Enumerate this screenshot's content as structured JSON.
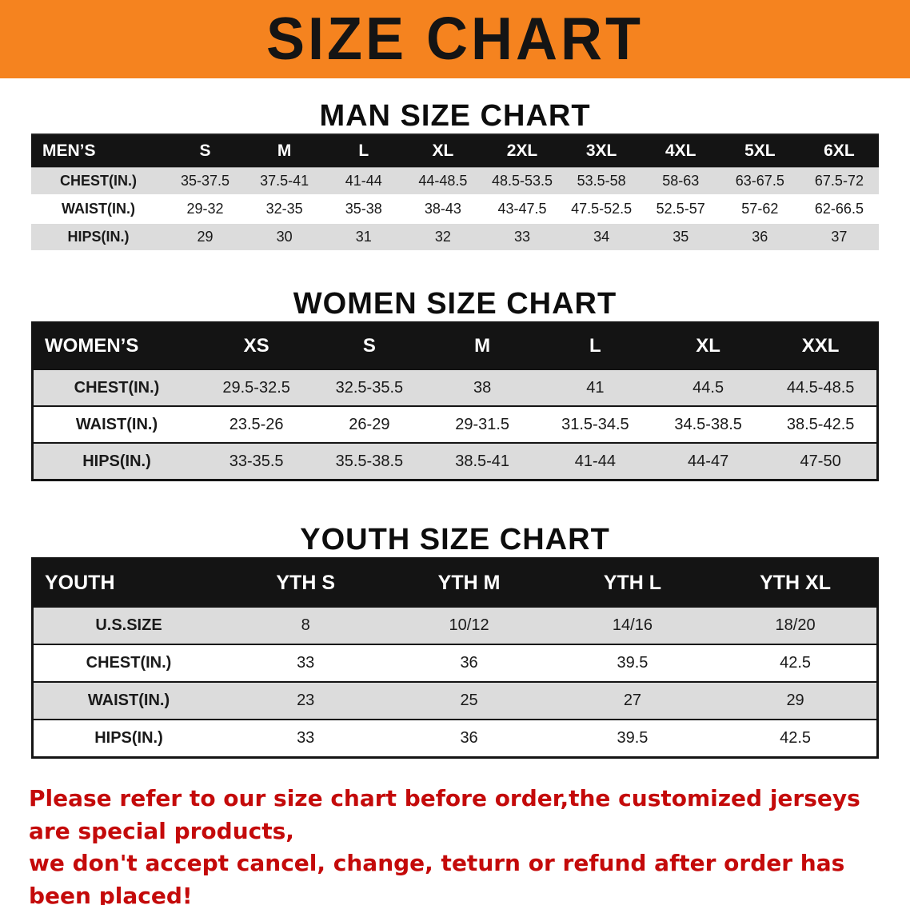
{
  "banner": {
    "title": "SIZE CHART",
    "background": "#f5831f",
    "text_color": "#141414"
  },
  "sections": {
    "man_title": "MAN SIZE CHART",
    "women_title": "WOMEN SIZE CHART",
    "youth_title": "YOUTH SIZE CHART"
  },
  "tables": {
    "men": {
      "header": [
        "MEN’S",
        "S",
        "M",
        "L",
        "XL",
        "2XL",
        "3XL",
        "4XL",
        "5XL",
        "6XL"
      ],
      "rows": [
        [
          "CHEST(IN.)",
          "35-37.5",
          "37.5-41",
          "41-44",
          "44-48.5",
          "48.5-53.5",
          "53.5-58",
          "58-63",
          "63-67.5",
          "67.5-72"
        ],
        [
          "WAIST(IN.)",
          "29-32",
          "32-35",
          "35-38",
          "38-43",
          "43-47.5",
          "47.5-52.5",
          "52.5-57",
          "57-62",
          "62-66.5"
        ],
        [
          "HIPS(IN.)",
          "29",
          "30",
          "31",
          "32",
          "33",
          "34",
          "35",
          "36",
          "37"
        ]
      ]
    },
    "women": {
      "header": [
        "WOMEN’S",
        "XS",
        "S",
        "M",
        "L",
        "XL",
        "XXL"
      ],
      "rows": [
        [
          "CHEST(IN.)",
          "29.5-32.5",
          "32.5-35.5",
          "38",
          "41",
          "44.5",
          "44.5-48.5"
        ],
        [
          "WAIST(IN.)",
          "23.5-26",
          "26-29",
          "29-31.5",
          "31.5-34.5",
          "34.5-38.5",
          "38.5-42.5"
        ],
        [
          "HIPS(IN.)",
          "33-35.5",
          "35.5-38.5",
          "38.5-41",
          "41-44",
          "44-47",
          "47-50"
        ]
      ]
    },
    "youth": {
      "header": [
        "YOUTH",
        "YTH S",
        "YTH M",
        "YTH L",
        "YTH XL"
      ],
      "rows": [
        [
          "U.S.SIZE",
          "8",
          "10/12",
          "14/16",
          "18/20"
        ],
        [
          "CHEST(IN.)",
          "33",
          "36",
          "39.5",
          "42.5"
        ],
        [
          "WAIST(IN.)",
          "23",
          "25",
          "27",
          "29"
        ],
        [
          "HIPS(IN.)",
          "33",
          "36",
          "39.5",
          "42.5"
        ]
      ]
    }
  },
  "disclaimer": {
    "line1": "Please refer to our size chart before order,the customized jerseys are special products,",
    "line2": "we don't accept cancel, change, teturn or refund after order has been placed!",
    "color": "#c40a0a"
  }
}
